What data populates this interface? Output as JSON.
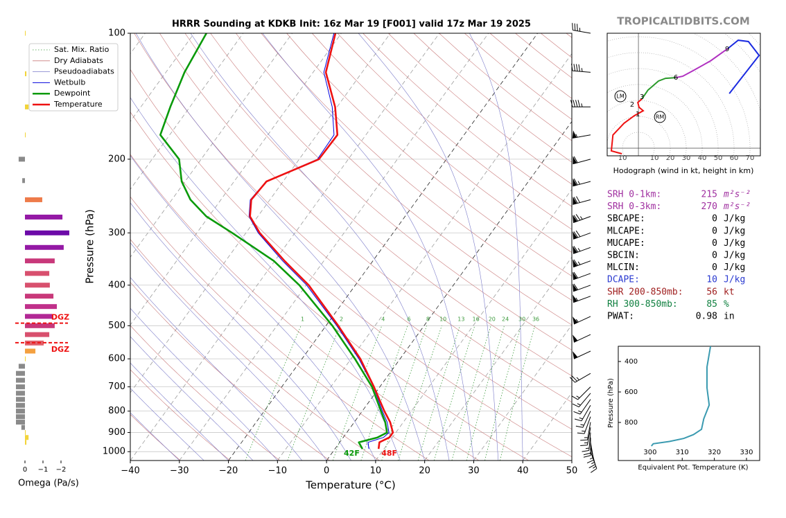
{
  "site": "TROPICALTIDBITS.COM",
  "chart_data": [
    {
      "type": "skewt",
      "title": "HRRR Sounding at KDKB Init: 16z Mar 19 [F001] valid 17z Mar 19 2025",
      "xlabel": "Temperature (°C)",
      "ylabel": "Pressure (hPa)",
      "xlim": [
        -40,
        50
      ],
      "ylim": [
        1050,
        100
      ],
      "log": true,
      "grid": true,
      "xticks": [
        {
          "value": -40,
          "label": "−40"
        },
        {
          "value": -30,
          "label": "−30"
        },
        {
          "value": -20,
          "label": "−20"
        },
        {
          "value": -10,
          "label": "−10"
        },
        0,
        10,
        20,
        30,
        40,
        50
      ],
      "yticks": [
        100,
        200,
        300,
        400,
        500,
        600,
        700,
        800,
        900,
        1000
      ],
      "background_lines": [
        {
          "name": "Sat. Mix. Ratio",
          "color": "#3c9a3c",
          "style": "dotted"
        },
        {
          "name": "Dry Adiabats",
          "color": "#c97a7a",
          "style": "solid"
        },
        {
          "name": "Pseudoadiabats",
          "color": "#7a7ac9",
          "style": "solid"
        }
      ],
      "mixing_ratio_labels": [
        1,
        2,
        4,
        6,
        8,
        10,
        13,
        16,
        20,
        24,
        30,
        36
      ],
      "levels": [
        100,
        124,
        150,
        175,
        200,
        226,
        250,
        274,
        300,
        350,
        400,
        500,
        600,
        700,
        800,
        850,
        900,
        925,
        950,
        985
      ],
      "series": [
        {
          "name": "Wetbulb",
          "color": "#0000dd",
          "values": [
            -61.5,
            -57.8,
            -51.0,
            -46.5,
            -46.3,
            -53.5,
            -54.0,
            -51.8,
            -47.5,
            -38.4,
            -29.9,
            -17.8,
            -8.4,
            -1.3,
            4.1,
            6.7,
            8.6,
            8.2,
            5.8,
            6.9
          ]
        },
        {
          "name": "Dewpoint",
          "color": "#0a9a0a",
          "surface_label": "42F",
          "values": [
            -87.5,
            -86.2,
            -84.0,
            -81.9,
            -74.5,
            -70.7,
            -66.2,
            -60.5,
            -52.8,
            -40.2,
            -31.4,
            -18.7,
            -9.2,
            -1.6,
            3.8,
            6.3,
            8.2,
            7.0,
            3.9,
            5.6
          ]
        },
        {
          "name": "Temperature",
          "color": "#ee1111",
          "surface_label": "48F",
          "values": [
            -61.2,
            -57.4,
            -50.4,
            -45.8,
            -46.0,
            -53.4,
            -53.8,
            -51.6,
            -47.2,
            -38.0,
            -29.5,
            -17.5,
            -8.1,
            -1.2,
            4.5,
            7.3,
            9.4,
            9.4,
            8.1,
            8.9
          ]
        }
      ],
      "wind": {
        "levels": [
          100,
          124,
          150,
          175,
          200,
          226,
          250,
          274,
          300,
          325,
          350,
          375,
          400,
          425,
          475,
          525,
          575,
          650,
          700,
          725,
          750,
          775,
          800,
          825,
          850,
          875,
          900,
          925,
          950,
          975,
          1000
        ],
        "speed": [
          35,
          45,
          45,
          55,
          60,
          65,
          70,
          75,
          70,
          65,
          65,
          60,
          60,
          55,
          55,
          50,
          50,
          25,
          15,
          15,
          15,
          15,
          15,
          15,
          15,
          15,
          15,
          20,
          15,
          15,
          15
        ],
        "direction": [
          280,
          275,
          270,
          260,
          255,
          255,
          255,
          250,
          250,
          250,
          250,
          250,
          250,
          250,
          245,
          245,
          245,
          240,
          225,
          220,
          215,
          210,
          205,
          200,
          190,
          190,
          185,
          180,
          170,
          165,
          160
        ]
      }
    },
    {
      "type": "bar",
      "orientation": "horizontal",
      "xlabel": "Omega (Pa/s)",
      "xlim": [
        0.6,
        -2.5
      ],
      "ylim": [
        1050,
        100
      ],
      "log": true,
      "xticks": [
        0,
        {
          "value": -1,
          "label": "−1"
        },
        {
          "value": -2,
          "label": "−2"
        }
      ],
      "levels": [
        100,
        125,
        150,
        175,
        200,
        225,
        250,
        275,
        300,
        325,
        350,
        375,
        400,
        425,
        450,
        475,
        500,
        525,
        550,
        575,
        600,
        625,
        650,
        675,
        700,
        725,
        750,
        775,
        800,
        825,
        850,
        875,
        900,
        925,
        950
      ],
      "values": [
        -0.04,
        -0.08,
        -0.2,
        -0.04,
        0.35,
        0.15,
        -0.96,
        -2.08,
        -2.46,
        -2.15,
        -1.65,
        -1.35,
        -1.38,
        -1.58,
        -1.77,
        -1.5,
        -1.65,
        -1.35,
        -1.04,
        -0.58,
        -0.04,
        0.35,
        0.5,
        0.5,
        0.5,
        0.5,
        0.5,
        0.5,
        0.5,
        0.5,
        0.5,
        0.2,
        -0.04,
        -0.2,
        -0.08
      ],
      "colors": [
        "#f2d43a",
        "#f2d43a",
        "#f2d43a",
        "#f2d43a",
        "#8a8a8a",
        "#8a8a8a",
        "#ee7b4a",
        "#9419a5",
        "#6c0aa8",
        "#9419a5",
        "#c8387a",
        "#d8506e",
        "#d8506e",
        "#c8387a",
        "#c0308a",
        "#b22895",
        "#c8387a",
        "#d8506e",
        "#e0606a",
        "#f4a040",
        "#f2d43a",
        "#8a8a8a",
        "#8a8a8a",
        "#8a8a8a",
        "#8a8a8a",
        "#8a8a8a",
        "#8a8a8a",
        "#8a8a8a",
        "#8a8a8a",
        "#8a8a8a",
        "#8a8a8a",
        "#8a8a8a",
        "#f2d43a",
        "#f2d43a",
        "#f2d43a"
      ],
      "dgz": {
        "label": "DGZ",
        "color": "#ee1111",
        "levels": [
          493,
          549
        ]
      }
    },
    {
      "type": "hodograph",
      "xlabel": "Hodograph (wind in kt, height in km)",
      "xlim": [
        -19.6,
        76.5
      ],
      "ylim": [
        -4.8,
        72.2
      ],
      "xticks": [
        {
          "value": -10,
          "label": "10"
        },
        10,
        20,
        30,
        40,
        50,
        60,
        70
      ],
      "segments": [
        {
          "color": "#ee1111",
          "u": [
            -10.4,
            -17,
            -16,
            -9,
            -2.6,
            3,
            0.4,
            -0.4,
            2.2
          ],
          "v": [
            -3.5,
            -1.7,
            8.3,
            15.7,
            20.4,
            23.5,
            25.7,
            28.7,
            30.9
          ]
        },
        {
          "color": "#2a9a2a",
          "u": [
            2.2,
            6,
            12.6,
            17,
            23.5
          ],
          "v": [
            30.9,
            36.5,
            42.2,
            43.9,
            44.3
          ]
        },
        {
          "color": "#b030c0",
          "u": [
            23.5,
            27.8,
            34.3,
            45.2,
            56.1
          ],
          "v": [
            44.3,
            45.2,
            48.7,
            54.8,
            62.6
          ]
        },
        {
          "color": "#1a2ae0",
          "u": [
            56.1,
            62.6,
            69,
            75.7,
            57
          ],
          "v": [
            62.6,
            67.8,
            67,
            58.3,
            34.3
          ]
        }
      ],
      "height_labels": [
        {
          "km": 1,
          "u": -0.4,
          "v": 21.3
        },
        {
          "km": 2,
          "u": -3.9,
          "v": 27.4
        },
        {
          "km": 3,
          "u": 2.2,
          "v": 32.2
        },
        {
          "km": 6,
          "u": 23.5,
          "v": 44.3
        },
        {
          "km": 9,
          "u": 55.7,
          "v": 62.2
        }
      ],
      "storm_motion": [
        {
          "label": "LM",
          "u": -11.3,
          "v": 32.6
        },
        {
          "label": "RM",
          "u": 13.5,
          "v": 19.6
        }
      ]
    },
    {
      "type": "line",
      "xlabel": "Equivalent Pot. Temperature (K)",
      "ylabel": "Pressure (hPa)",
      "xlim": [
        290.1,
        334.1
      ],
      "ylim": [
        1050,
        300
      ],
      "xticks": [
        300,
        310,
        320,
        330
      ],
      "yticks": [
        400,
        600,
        800
      ],
      "color": "#3a9ab0",
      "y": [
        300,
        436,
        573,
        686,
        777,
        845,
        880,
        905,
        925,
        940,
        955
      ],
      "values": [
        318.8,
        317.7,
        317.7,
        318.4,
        316.7,
        316.0,
        313.5,
        310.5,
        306.0,
        301.0,
        300.4
      ]
    }
  ],
  "indices": [
    {
      "label": "SRH 0-1km:",
      "value": 215,
      "unit": "m²s⁻²",
      "color": "#a030a0"
    },
    {
      "label": "SRH 0-3km:",
      "value": 270,
      "unit": "m²s⁻²",
      "color": "#a030a0"
    },
    {
      "label": "SBCAPE:",
      "value": 0,
      "unit": "J/kg",
      "color": "#000000"
    },
    {
      "label": "MLCAPE:",
      "value": 0,
      "unit": "J/kg",
      "color": "#000000"
    },
    {
      "label": "MUCAPE:",
      "value": 0,
      "unit": "J/kg",
      "color": "#000000"
    },
    {
      "label": "SBCIN:",
      "value": 0,
      "unit": "J/kg",
      "color": "#000000"
    },
    {
      "label": "MLCIN:",
      "value": 0,
      "unit": "J/kg",
      "color": "#000000"
    },
    {
      "label": "DCAPE:",
      "value": 10,
      "unit": "J/kg",
      "color": "#2a3ad0"
    },
    {
      "label": "SHR 200-850mb:",
      "value": 56,
      "unit": "kt",
      "color": "#a02020"
    },
    {
      "label": "RH 300-850mb:",
      "value": 85,
      "unit": "%",
      "color": "#108040"
    },
    {
      "label": "PWAT:",
      "value": 0.98,
      "unit": "in",
      "color": "#000000"
    }
  ]
}
